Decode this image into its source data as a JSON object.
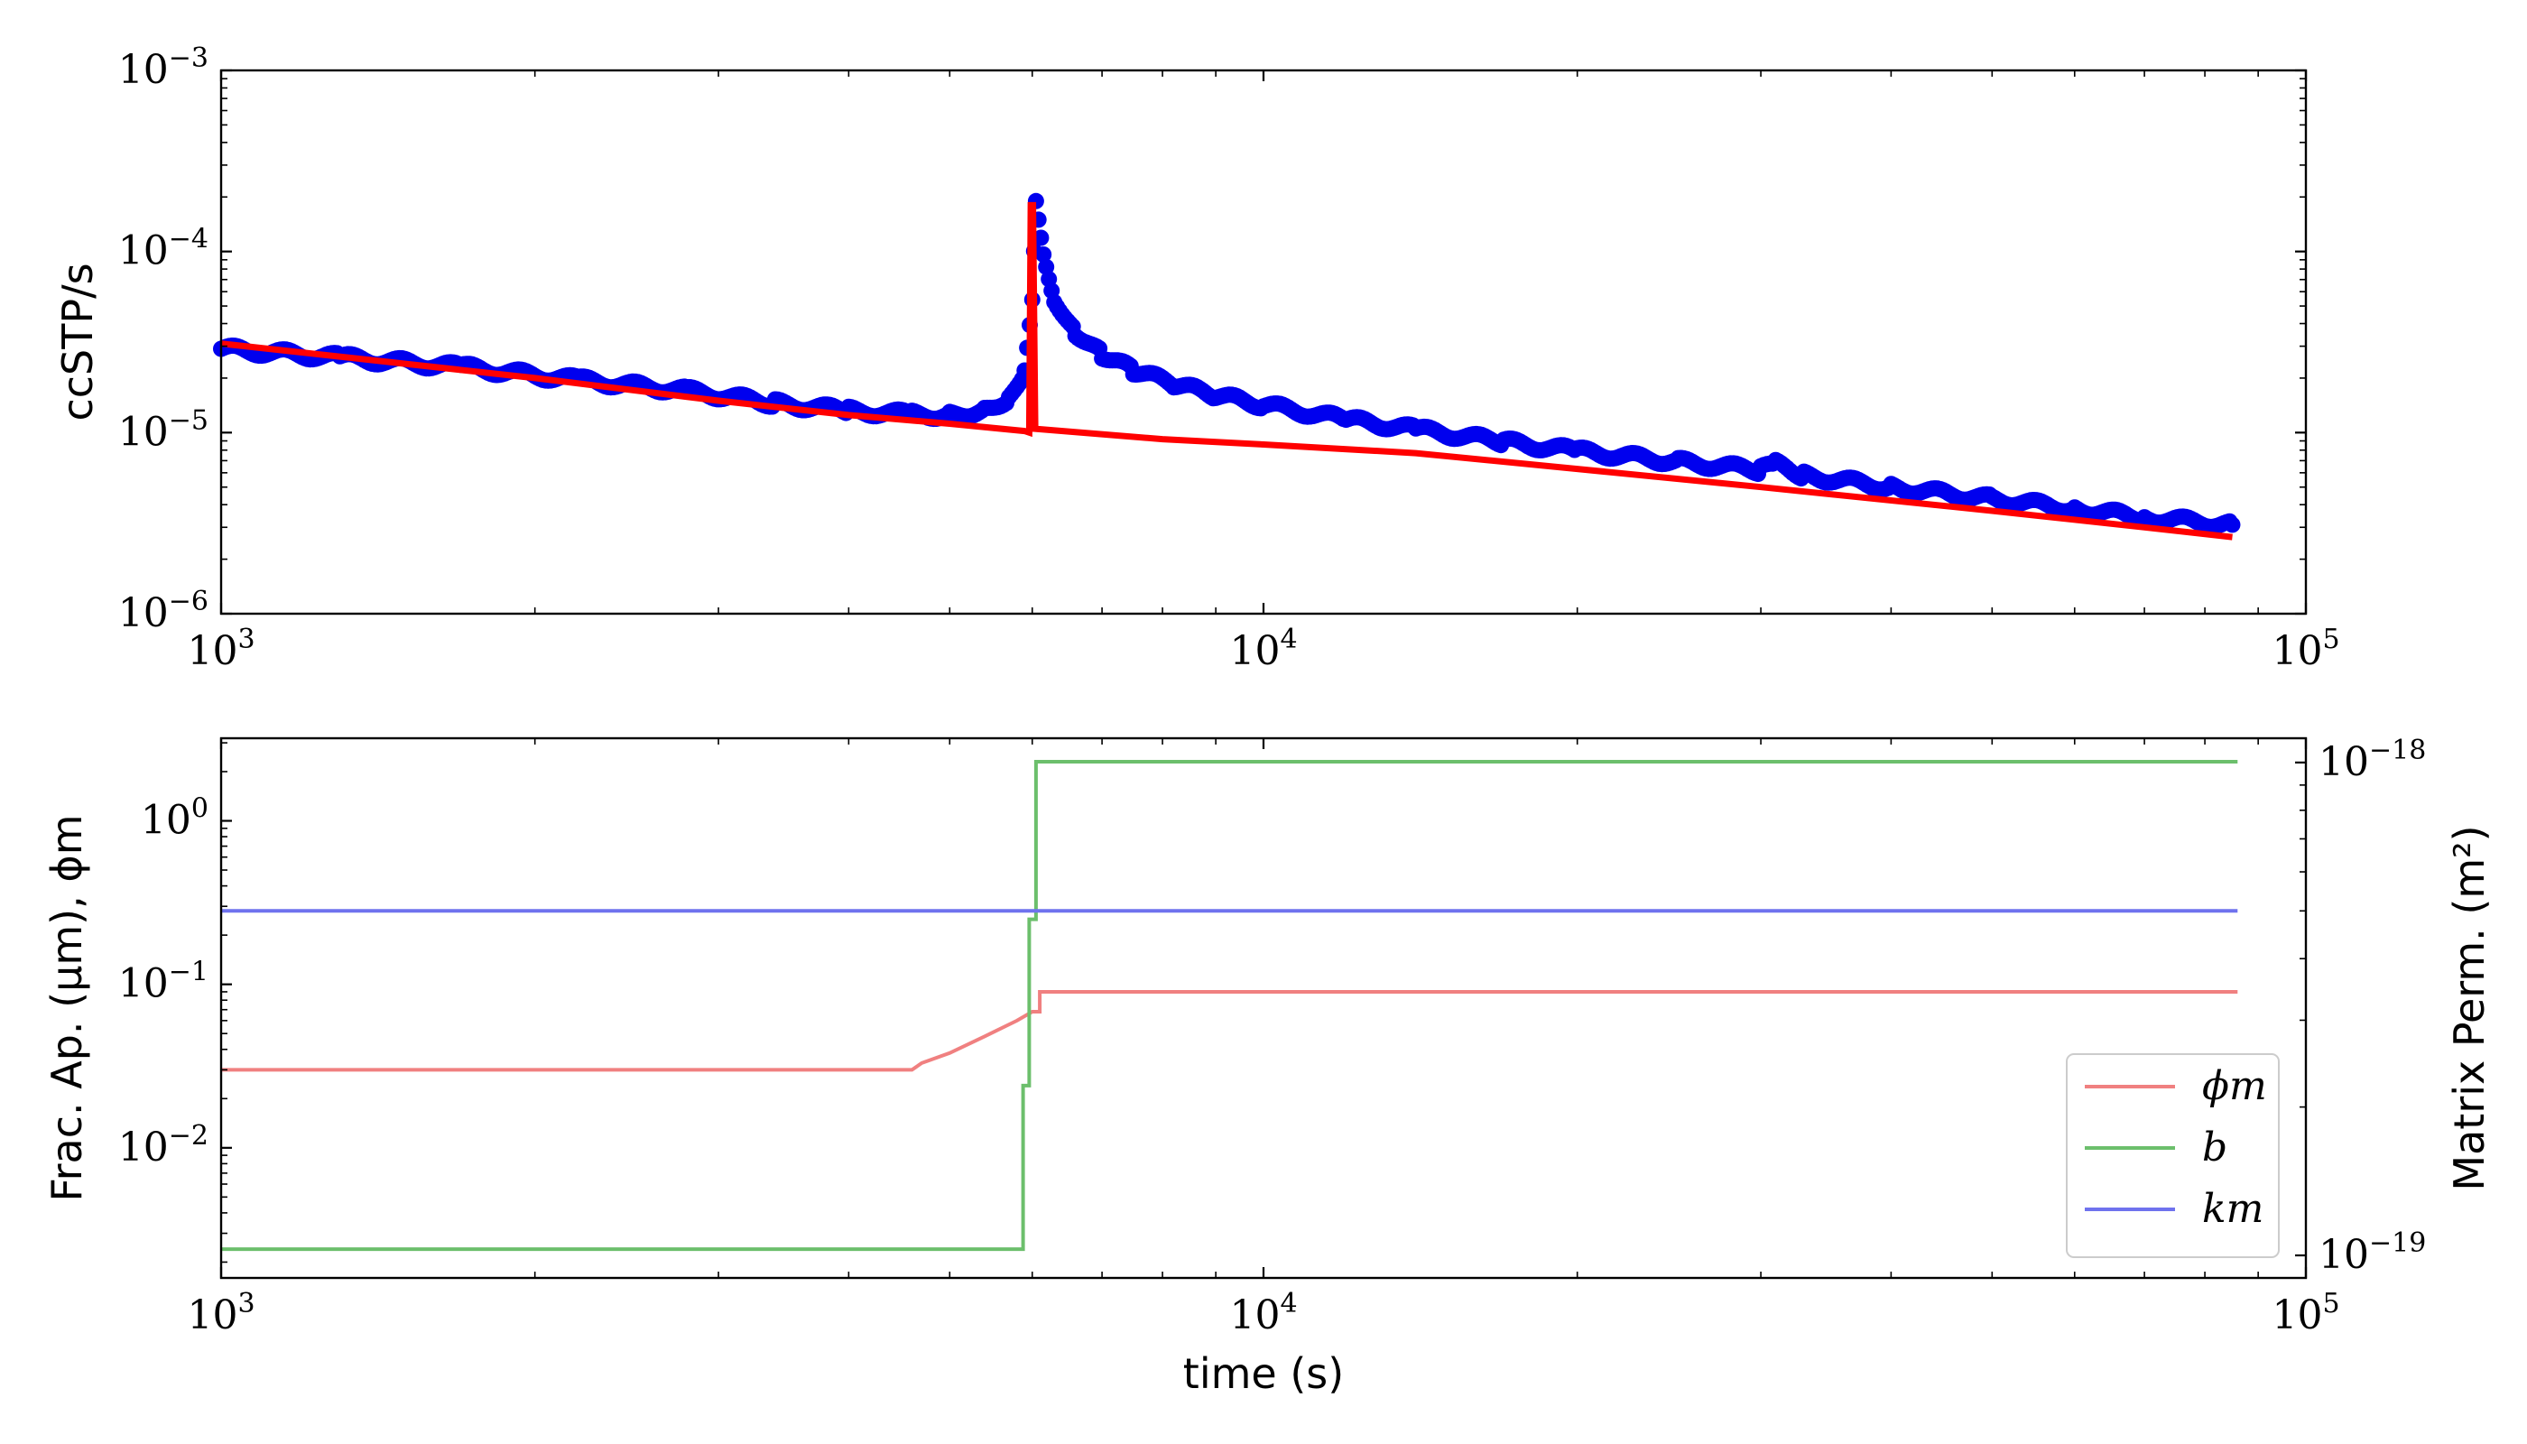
{
  "chart_data": [
    {
      "type": "scatter",
      "xlabel": "",
      "ylabel": "ccSTP/s",
      "xscale": "log",
      "yscale": "log",
      "xlim": [
        1000,
        100000
      ],
      "ylim": [
        1e-06,
        0.001
      ],
      "x_ticks": [
        {
          "base": "10",
          "exp": "3"
        },
        {
          "base": "10",
          "exp": "4"
        },
        {
          "base": "10",
          "exp": "5"
        }
      ],
      "y_ticks": [
        {
          "base": "10",
          "exp": "−6"
        },
        {
          "base": "10",
          "exp": "−5"
        },
        {
          "base": "10",
          "exp": "−4"
        },
        {
          "base": "10",
          "exp": "−3"
        }
      ],
      "series": [
        {
          "kind": "markers",
          "color": "#0000ee",
          "points": [
            [
              1000,
              2.9e-05
            ],
            [
              1300,
              2.6e-05
            ],
            [
              1700,
              2.3e-05
            ],
            [
              2200,
              1.95e-05
            ],
            [
              2800,
              1.7e-05
            ],
            [
              3400,
              1.45e-05
            ],
            [
              4000,
              1.32e-05
            ],
            [
              4600,
              1.26e-05
            ],
            [
              5000,
              1.25e-05
            ],
            [
              5400,
              1.33e-05
            ],
            [
              5700,
              1.55e-05
            ],
            [
              5900,
              2.2e-05
            ],
            [
              6000,
              5.5e-05
            ],
            [
              6050,
              0.000195
            ],
            [
              6150,
              0.0001
            ],
            [
              6300,
              5.5e-05
            ],
            [
              6600,
              3.6e-05
            ],
            [
              7000,
              2.7e-05
            ],
            [
              7500,
              2.2e-05
            ],
            [
              8200,
              1.85e-05
            ],
            [
              9000,
              1.6e-05
            ],
            [
              10000,
              1.42e-05
            ],
            [
              12000,
              1.18e-05
            ],
            [
              14000,
              1.04e-05
            ],
            [
              17000,
              8.9e-06
            ],
            [
              20000,
              7.9e-06
            ],
            [
              25000,
              6.9e-06
            ],
            [
              30000,
              6.2e-06
            ],
            [
              31000,
              6.7e-06
            ],
            [
              33000,
              5.8e-06
            ],
            [
              40000,
              5e-06
            ],
            [
              50000,
              4.3e-06
            ],
            [
              60000,
              3.8e-06
            ],
            [
              70000,
              3.4e-06
            ],
            [
              85000,
              3.1e-06
            ]
          ]
        },
        {
          "kind": "line",
          "color": "#ff0000",
          "points": [
            [
              1000,
              3.1e-05
            ],
            [
              2000,
              2e-05
            ],
            [
              3000,
              1.5e-05
            ],
            [
              4000,
              1.25e-05
            ],
            [
              5000,
              1.12e-05
            ],
            [
              5900,
              1.02e-05
            ],
            [
              5960,
              1e-05
            ],
            [
              5980,
              0.00018
            ],
            [
              6010,
              0.00018
            ],
            [
              6040,
              1.05e-05
            ],
            [
              8000,
              9.2e-06
            ],
            [
              10000,
              8.6e-06
            ],
            [
              14000,
              7.7e-06
            ],
            [
              20000,
              6.3e-06
            ],
            [
              30000,
              5e-06
            ],
            [
              50000,
              3.7e-06
            ],
            [
              70000,
              3e-06
            ],
            [
              85000,
              2.65e-06
            ]
          ]
        }
      ]
    },
    {
      "type": "line",
      "xlabel": "time (s)",
      "ylabel": "Frac. Ap. (μm), ϕm",
      "ylabel_right": "Matrix Perm. (m²)",
      "xscale": "log",
      "yscale": "log",
      "xlim": [
        1000,
        100000
      ],
      "ylim": [
        0.0016,
        3.2
      ],
      "ylim_right": [
        9e-20,
        1.12e-18
      ],
      "x_ticks": [
        {
          "base": "10",
          "exp": "3"
        },
        {
          "base": "10",
          "exp": "4"
        },
        {
          "base": "10",
          "exp": "5"
        }
      ],
      "y_ticks": [
        {
          "base": "10",
          "exp": "−2"
        },
        {
          "base": "10",
          "exp": "−1"
        },
        {
          "base": "10",
          "exp": "0"
        }
      ],
      "y_ticks_right": [
        {
          "base": "10",
          "exp": "−19"
        },
        {
          "base": "10",
          "exp": "−18"
        }
      ],
      "legend_position": "lower-right",
      "series": [
        {
          "name": "ϕm",
          "color": "#f08080",
          "axis": "left",
          "points": [
            [
              1000,
              0.03
            ],
            [
              4600,
              0.03
            ],
            [
              4700,
              0.033
            ],
            [
              5000,
              0.038
            ],
            [
              5400,
              0.048
            ],
            [
              5800,
              0.06
            ],
            [
              6000,
              0.068
            ],
            [
              6100,
              0.068
            ],
            [
              6100,
              0.09
            ],
            [
              86000,
              0.09
            ]
          ]
        },
        {
          "name": "b",
          "color": "#6cbf6c",
          "axis": "left",
          "points": [
            [
              1000,
              0.0024
            ],
            [
              5880,
              0.0024
            ],
            [
              5880,
              0.024
            ],
            [
              5960,
              0.024
            ],
            [
              5960,
              0.25
            ],
            [
              6050,
              0.25
            ],
            [
              6050,
              2.3
            ],
            [
              86000,
              2.3
            ]
          ]
        },
        {
          "name": "km",
          "color": "#6f72ee",
          "axis": "right",
          "points": [
            [
              1000,
              5e-19
            ],
            [
              86000,
              5e-19
            ]
          ]
        }
      ]
    }
  ]
}
